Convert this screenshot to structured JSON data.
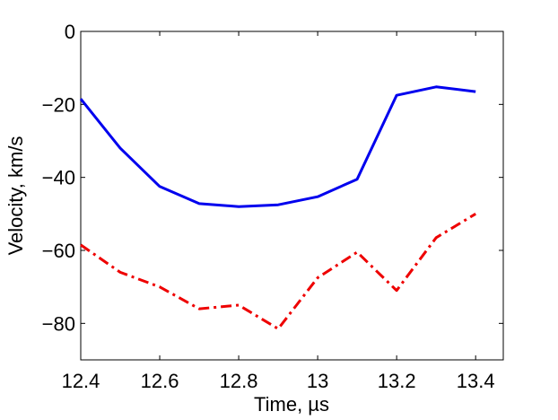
{
  "chart_data": {
    "type": "line",
    "xlabel": "Time, µs",
    "ylabel": "Velocity, km/s",
    "xlim": [
      12.4,
      13.47
    ],
    "ylim": [
      -90,
      0
    ],
    "xticks": [
      12.4,
      12.6,
      12.8,
      13.0,
      13.2,
      13.4
    ],
    "xtick_labels": [
      "12.4",
      "12.6",
      "12.8",
      "13",
      "13.2",
      "13.4"
    ],
    "yticks": [
      0,
      -20,
      -40,
      -60,
      -80
    ],
    "ytick_labels": [
      "0",
      "−20",
      "−40",
      "−60",
      "−80"
    ],
    "grid": false,
    "series": [
      {
        "style": "solid",
        "color": "#0000ee",
        "x": [
          12.4,
          12.5,
          12.6,
          12.7,
          12.8,
          12.9,
          13.0,
          13.1,
          13.2,
          13.3,
          13.4
        ],
        "values": [
          -18.5,
          -32,
          -42.5,
          -47.2,
          -48,
          -47.5,
          -45.3,
          -40.5,
          -17.5,
          -15.2,
          -16.5
        ]
      },
      {
        "style": "dashdot",
        "color": "#ee0000",
        "x": [
          12.4,
          12.5,
          12.6,
          12.7,
          12.8,
          12.9,
          13.0,
          13.1,
          13.2,
          13.3,
          13.4
        ],
        "values": [
          -58.5,
          -66,
          -70,
          -76,
          -75,
          -81.5,
          -67.5,
          -60.5,
          -71,
          -56.5,
          -50
        ]
      }
    ]
  }
}
